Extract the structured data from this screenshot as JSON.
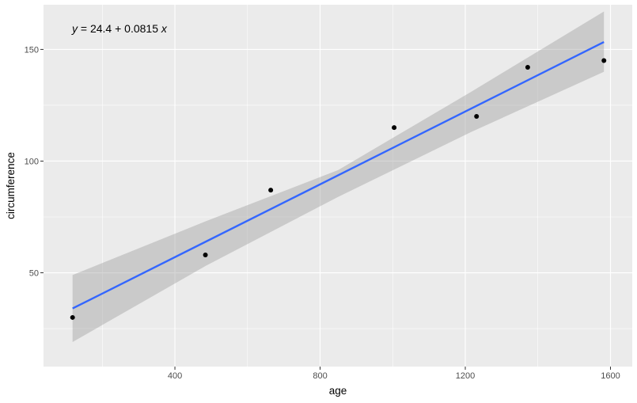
{
  "chart_data": {
    "type": "scatter",
    "xlabel": "age",
    "ylabel": "circumference",
    "xlim": [
      38,
      1660
    ],
    "ylim": [
      8,
      170
    ],
    "x_ticks": [
      400,
      800,
      1200,
      1600
    ],
    "y_ticks": [
      50,
      100,
      150
    ],
    "grid": true,
    "points": [
      {
        "x": 118,
        "y": 30
      },
      {
        "x": 484,
        "y": 58
      },
      {
        "x": 664,
        "y": 87
      },
      {
        "x": 1004,
        "y": 115
      },
      {
        "x": 1231,
        "y": 120
      },
      {
        "x": 1372,
        "y": 142
      },
      {
        "x": 1582,
        "y": 145
      }
    ],
    "fit": {
      "intercept": 24.4,
      "slope": 0.0815,
      "x_range": [
        118,
        1582
      ],
      "line_color": "#3366ff",
      "band_color": "#999999",
      "confidence_band": [
        {
          "x": 118,
          "lower": 19,
          "upper": 49
        },
        {
          "x": 484,
          "lower": 53,
          "upper": 73
        },
        {
          "x": 850,
          "lower": 84,
          "upper": 96
        },
        {
          "x": 1216,
          "lower": 113,
          "upper": 131
        },
        {
          "x": 1582,
          "lower": 140,
          "upper": 167
        }
      ]
    },
    "annotation": {
      "equation_prefix": "y",
      "equation_body": " = 24.4 + 0.0815 ",
      "equation_var": "x"
    },
    "colors": {
      "panel_background": "#ebebeb",
      "grid": "#ffffff",
      "point": "#000000"
    }
  }
}
